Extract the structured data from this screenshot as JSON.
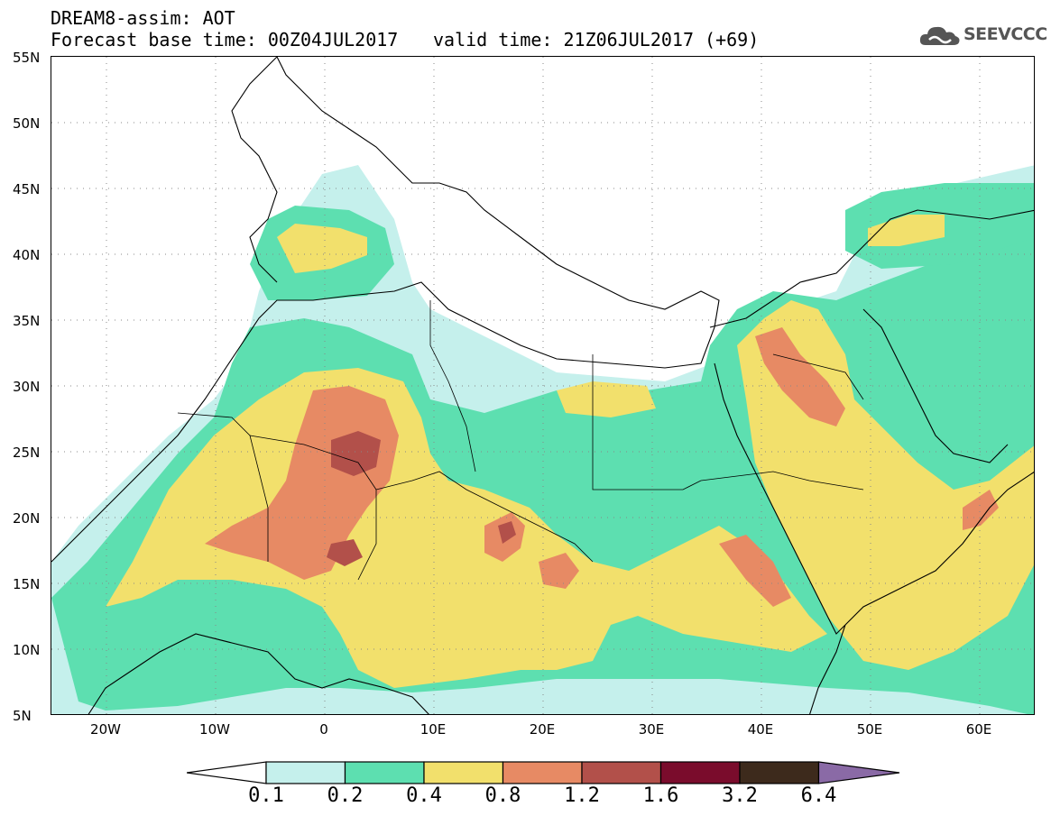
{
  "header": {
    "title": "DREAM8-assim: AOT",
    "base_time": "Forecast base time: 00Z04JUL2017",
    "valid_time": "valid time: 21Z06JUL2017 (+69)"
  },
  "logo": {
    "text": "SEEVCCC",
    "icon": "cloud-icon"
  },
  "map": {
    "lat_labels": [
      "55N",
      "50N",
      "45N",
      "40N",
      "35N",
      "30N",
      "25N",
      "20N",
      "15N",
      "10N",
      "5N"
    ],
    "lon_labels": [
      "20W",
      "10W",
      "0",
      "10E",
      "20E",
      "30E",
      "40E",
      "50E",
      "60E"
    ],
    "lon_range": [
      -25,
      65
    ],
    "lat_range": [
      5,
      55
    ]
  },
  "colorbar": {
    "labels": [
      "0.1",
      "0.2",
      "0.4",
      "0.8",
      "1.2",
      "1.6",
      "3.2",
      "6.4"
    ],
    "colors": [
      "#c5f0ec",
      "#5ddfb0",
      "#f2e06c",
      "#e78a64",
      "#b2504a",
      "#7a0c2c",
      "#3d2a1c",
      "#8a6aa6"
    ]
  }
}
